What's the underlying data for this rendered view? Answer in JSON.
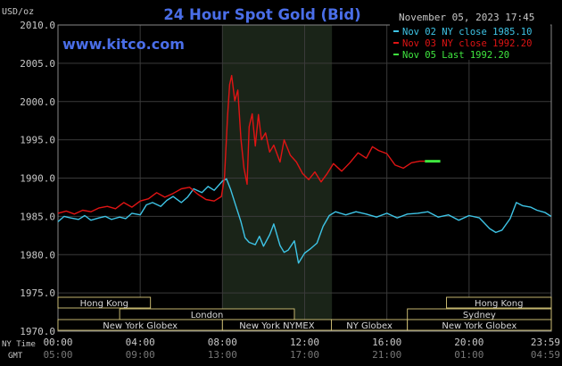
{
  "chart_data": {
    "type": "line",
    "title": "24 Hour Spot Gold (Bid)",
    "subtitle": "www.kitco.com",
    "timestamp": "November 05, 2023 17:45",
    "ylabel": "USD/oz",
    "ylim": [
      1970,
      2010
    ],
    "yticks": [
      "2010.0",
      "2005.0",
      "2000.0",
      "1995.0",
      "1990.0",
      "1985.0",
      "1980.0",
      "1975.0",
      "1970.0"
    ],
    "xlim": [
      0,
      24
    ],
    "xticks_ny": [
      "00:00",
      "04:00",
      "08:00",
      "12:00",
      "16:00",
      "20:00",
      "23:59"
    ],
    "xticks_gmt": [
      "05:00",
      "09:00",
      "13:00",
      "17:00",
      "21:00",
      "01:00",
      "04:59"
    ],
    "x_ny_label": "NY Time",
    "x_gmt_label": "GMT",
    "grid": true,
    "legend_position": "top-right",
    "colors": {
      "background": "#000000",
      "grid": "#3a3a3a",
      "shade": "#1a2418",
      "title": "#4a6ee8",
      "text": "#c8c8c8"
    },
    "shaded_session_hours": [
      8.0,
      13.33
    ],
    "series": [
      {
        "name": "Nov 02 NY close",
        "legend": "Nov 02 NY close 1985.10",
        "color": "#3ec4e6",
        "x": [
          0,
          0.3,
          0.6,
          1,
          1.3,
          1.6,
          2,
          2.3,
          2.6,
          3,
          3.3,
          3.6,
          4,
          4.3,
          4.6,
          5,
          5.3,
          5.6,
          6,
          6.3,
          6.6,
          7,
          7.3,
          7.6,
          8,
          8.2,
          8.4,
          8.6,
          8.9,
          9.1,
          9.3,
          9.6,
          9.8,
          10,
          10.3,
          10.5,
          10.8,
          11,
          11.2,
          11.5,
          11.7,
          12,
          12.3,
          12.6,
          12.9,
          13.2,
          13.5,
          14,
          14.5,
          15,
          15.5,
          16,
          16.5,
          17,
          17.5,
          18,
          18.5,
          19,
          19.5,
          20,
          20.5,
          21,
          21.3,
          21.6,
          22,
          22.3,
          22.6,
          23,
          23.3,
          23.7,
          23.99
        ],
        "values": [
          1984.3,
          1985.0,
          1984.8,
          1984.6,
          1985.1,
          1984.5,
          1984.8,
          1985.0,
          1984.6,
          1984.9,
          1984.7,
          1985.4,
          1985.2,
          1986.5,
          1986.8,
          1986.3,
          1987.1,
          1987.6,
          1986.8,
          1987.5,
          1988.6,
          1988.1,
          1988.9,
          1988.4,
          1989.6,
          1989.9,
          1988.5,
          1986.8,
          1984.3,
          1982.2,
          1981.6,
          1981.3,
          1982.4,
          1981.1,
          1982.6,
          1984.0,
          1981.2,
          1980.3,
          1980.6,
          1981.8,
          1978.9,
          1980.2,
          1980.8,
          1981.5,
          1983.7,
          1985.1,
          1985.6,
          1985.2,
          1985.6,
          1985.3,
          1984.9,
          1985.4,
          1984.8,
          1985.3,
          1985.4,
          1985.6,
          1984.9,
          1985.2,
          1984.5,
          1985.1,
          1984.8,
          1983.4,
          1982.9,
          1983.2,
          1984.7,
          1986.8,
          1986.4,
          1986.2,
          1985.8,
          1985.5,
          1985.0
        ]
      },
      {
        "name": "Nov 03 NY close",
        "legend": "Nov 03 NY close 1992.20",
        "color": "#e01414",
        "x": [
          0,
          0.4,
          0.8,
          1.2,
          1.6,
          2,
          2.4,
          2.8,
          3.2,
          3.6,
          4,
          4.4,
          4.8,
          5.2,
          5.6,
          6,
          6.4,
          6.8,
          7.2,
          7.6,
          7.95,
          8.1,
          8.25,
          8.35,
          8.45,
          8.6,
          8.75,
          8.9,
          9.05,
          9.2,
          9.3,
          9.45,
          9.6,
          9.75,
          9.9,
          10.1,
          10.3,
          10.5,
          10.8,
          11,
          11.3,
          11.6,
          11.9,
          12.2,
          12.5,
          12.8,
          13.1,
          13.4,
          13.8,
          14.2,
          14.6,
          15,
          15.3,
          15.6,
          16,
          16.4,
          16.8,
          17.2,
          17.6,
          17.85
        ],
        "values": [
          1985.4,
          1985.7,
          1985.3,
          1985.8,
          1985.6,
          1986.1,
          1986.3,
          1986.0,
          1986.8,
          1986.2,
          1987.0,
          1987.3,
          1988.1,
          1987.5,
          1988.0,
          1988.6,
          1988.8,
          1987.9,
          1987.2,
          1987.0,
          1987.6,
          1990.0,
          1998.1,
          2002.2,
          2003.4,
          2000.1,
          2001.5,
          1995.1,
          1991.3,
          1989.2,
          1996.7,
          1998.4,
          1994.2,
          1998.3,
          1995.0,
          1995.9,
          1993.4,
          1994.3,
          1992.1,
          1995.0,
          1993.0,
          1992.1,
          1990.6,
          1989.8,
          1990.8,
          1989.5,
          1990.6,
          1991.9,
          1990.9,
          1992.0,
          1993.3,
          1992.6,
          1994.1,
          1993.6,
          1993.2,
          1991.7,
          1991.3,
          1992.0,
          1992.2,
          1992.2
        ]
      },
      {
        "name": "Nov 05 Last",
        "legend": "Nov 05 Last 1992.20",
        "color": "#3fe63f",
        "x": [
          17.85,
          18.6
        ],
        "values": [
          1992.2,
          1992.2
        ]
      }
    ],
    "sessions": [
      {
        "label": "Hong Kong",
        "row": 0,
        "start": 0,
        "end": 4.5
      },
      {
        "label": "Hong Kong",
        "row": 0,
        "start": 18.9,
        "end": 24
      },
      {
        "label": "London",
        "row": 1,
        "start": 3,
        "end": 11.5
      },
      {
        "label": "Sydney",
        "row": 1,
        "start": 17.0,
        "end": 24
      },
      {
        "label": "New York Globex",
        "row": 2,
        "start": 0,
        "end": 8.0
      },
      {
        "label": "New York NYMEX",
        "row": 2,
        "start": 8.0,
        "end": 13.3
      },
      {
        "label": "NY Globex",
        "row": 2,
        "start": 13.3,
        "end": 17.0
      },
      {
        "label": "New York Globex",
        "row": 2,
        "start": 17.0,
        "end": 24
      }
    ]
  }
}
